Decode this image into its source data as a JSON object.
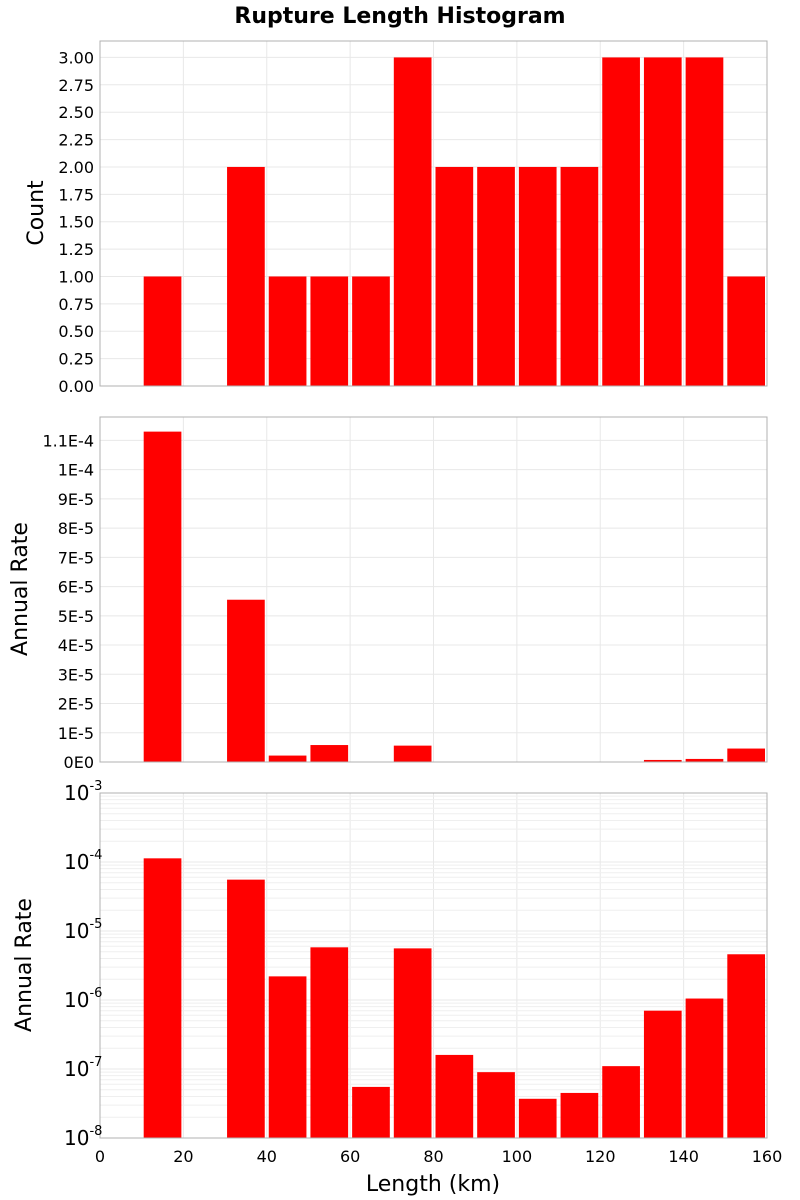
{
  "chart_data": {
    "title": "Rupture Length Histogram",
    "xlabel": "Length (km)",
    "xlim": [
      0,
      160
    ],
    "x_ticks": [
      0,
      20,
      40,
      60,
      80,
      100,
      120,
      140,
      160
    ],
    "bar_color": "#ff0000",
    "bin_width": 10,
    "panels": [
      {
        "id": "count",
        "type": "bar",
        "ylabel": "Count",
        "yscale": "linear",
        "ylim": [
          0,
          3.15
        ],
        "y_ticks": [
          "0.00",
          "0.25",
          "0.50",
          "0.75",
          "1.00",
          "1.25",
          "1.50",
          "1.75",
          "2.00",
          "2.25",
          "2.50",
          "2.75",
          "3.00"
        ],
        "bars": [
          {
            "x": 10,
            "value": 1
          },
          {
            "x": 30,
            "value": 2
          },
          {
            "x": 40,
            "value": 1
          },
          {
            "x": 50,
            "value": 1
          },
          {
            "x": 60,
            "value": 1
          },
          {
            "x": 70,
            "value": 3
          },
          {
            "x": 80,
            "value": 2
          },
          {
            "x": 90,
            "value": 2
          },
          {
            "x": 100,
            "value": 2
          },
          {
            "x": 110,
            "value": 2
          },
          {
            "x": 120,
            "value": 3
          },
          {
            "x": 130,
            "value": 3
          },
          {
            "x": 140,
            "value": 3
          },
          {
            "x": 150,
            "value": 1
          }
        ]
      },
      {
        "id": "rate-linear",
        "type": "bar",
        "ylabel": "Annual Rate",
        "yscale": "linear",
        "ylim": [
          0,
          0.000118
        ],
        "y_ticks": [
          "0E0",
          "1E-5",
          "2E-5",
          "3E-5",
          "4E-5",
          "5E-5",
          "6E-5",
          "7E-5",
          "8E-5",
          "9E-5",
          "1E-4",
          "1.1E-4"
        ],
        "bars": [
          {
            "x": 10,
            "value": 0.000113
          },
          {
            "x": 30,
            "value": 5.55e-05
          },
          {
            "x": 40,
            "value": 2.2e-06
          },
          {
            "x": 50,
            "value": 5.8e-06
          },
          {
            "x": 60,
            "value": 5.5e-08
          },
          {
            "x": 70,
            "value": 5.6e-06
          },
          {
            "x": 80,
            "value": 1.6e-07
          },
          {
            "x": 90,
            "value": 9e-08
          },
          {
            "x": 100,
            "value": 3.7e-08
          },
          {
            "x": 110,
            "value": 4.5e-08
          },
          {
            "x": 120,
            "value": 1.1e-07
          },
          {
            "x": 130,
            "value": 7e-07
          },
          {
            "x": 140,
            "value": 1.05e-06
          },
          {
            "x": 150,
            "value": 4.6e-06
          }
        ]
      },
      {
        "id": "rate-log",
        "type": "bar",
        "ylabel": "Annual Rate",
        "yscale": "log",
        "ylim": [
          1e-08,
          0.001
        ],
        "y_ticks": [
          {
            "base": "10",
            "exp": "-8"
          },
          {
            "base": "10",
            "exp": "-7"
          },
          {
            "base": "10",
            "exp": "-6"
          },
          {
            "base": "10",
            "exp": "-5"
          },
          {
            "base": "10",
            "exp": "-4"
          },
          {
            "base": "10",
            "exp": "-3"
          }
        ],
        "bars": [
          {
            "x": 10,
            "value": 0.000113
          },
          {
            "x": 30,
            "value": 5.55e-05
          },
          {
            "x": 40,
            "value": 2.2e-06
          },
          {
            "x": 50,
            "value": 5.8e-06
          },
          {
            "x": 60,
            "value": 5.5e-08
          },
          {
            "x": 70,
            "value": 5.6e-06
          },
          {
            "x": 80,
            "value": 1.6e-07
          },
          {
            "x": 90,
            "value": 9e-08
          },
          {
            "x": 100,
            "value": 3.7e-08
          },
          {
            "x": 110,
            "value": 4.5e-08
          },
          {
            "x": 120,
            "value": 1.1e-07
          },
          {
            "x": 130,
            "value": 7e-07
          },
          {
            "x": 140,
            "value": 1.05e-06
          },
          {
            "x": 150,
            "value": 4.6e-06
          }
        ]
      }
    ]
  }
}
